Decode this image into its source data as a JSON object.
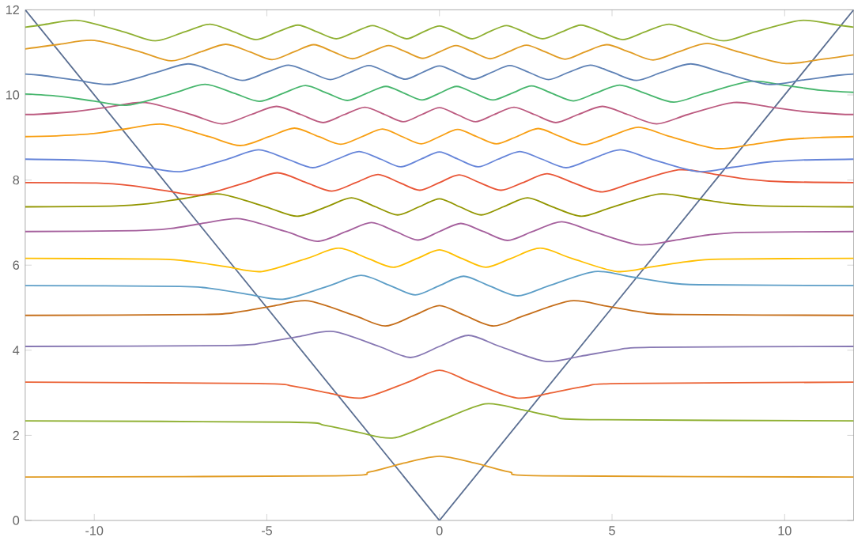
{
  "chart_data": {
    "type": "line",
    "xlim": [
      -12,
      12
    ],
    "ylim": [
      0,
      12
    ],
    "xticks": [
      -10,
      -5,
      0,
      5,
      10
    ],
    "yticks": [
      0,
      2,
      4,
      6,
      8,
      10,
      12
    ],
    "grid": false,
    "series": [
      {
        "color": "#5b6f92",
        "x": [
          -12,
          0,
          12
        ],
        "values": [
          12,
          0,
          12
        ]
      },
      {
        "color": "#E19C24",
        "x": [
          -12,
          -3.02,
          -2.02,
          -1.02,
          0,
          1.02,
          2.02,
          3.02,
          12
        ],
        "values": [
          1.02,
          1.05,
          1.14,
          1.35,
          1.51,
          1.35,
          1.14,
          1.05,
          1.02
        ]
      },
      {
        "color": "#8FB032",
        "x": [
          -12,
          -4.34,
          -3.34,
          -2.34,
          -1.32,
          0,
          1.32,
          2.34,
          3.34,
          4.34,
          12
        ],
        "values": [
          2.34,
          2.31,
          2.24,
          2.07,
          1.94,
          2.34,
          2.74,
          2.61,
          2.44,
          2.37,
          2.34
        ]
      },
      {
        "color": "#EB6235",
        "x": [
          -12,
          -5.25,
          -4.25,
          -3.25,
          -2.23,
          -0.91,
          0,
          0.91,
          2.23,
          3.25,
          4.25,
          5.25,
          12
        ],
        "values": [
          3.25,
          3.22,
          3.16,
          3.0,
          2.88,
          3.25,
          3.53,
          3.25,
          2.88,
          3.0,
          3.16,
          3.22,
          3.25
        ]
      },
      {
        "color": "#8778B3",
        "x": [
          -12,
          -6.09,
          -5.09,
          -4.09,
          -3.07,
          -1.75,
          -0.84,
          0,
          0.84,
          1.75,
          3.07,
          4.09,
          5.09,
          6.09,
          12
        ],
        "values": [
          4.09,
          4.11,
          4.18,
          4.32,
          4.44,
          4.09,
          3.83,
          4.09,
          4.35,
          4.09,
          3.74,
          3.86,
          4.0,
          4.07,
          4.09
        ]
      },
      {
        "color": "#C56E1A",
        "x": [
          -12,
          -6.82,
          -5.82,
          -4.82,
          -3.8,
          -2.48,
          -1.57,
          -0.73,
          0,
          0.73,
          1.57,
          2.48,
          3.8,
          4.82,
          5.82,
          6.82,
          12
        ],
        "values": [
          4.82,
          4.84,
          4.9,
          5.04,
          5.16,
          4.82,
          4.57,
          4.82,
          5.05,
          4.82,
          4.57,
          4.82,
          5.16,
          5.04,
          4.9,
          4.84,
          4.82
        ]
      },
      {
        "color": "#5D9EC7",
        "x": [
          -12,
          -7.52,
          -6.52,
          -5.52,
          -4.5,
          -3.18,
          -2.27,
          -1.43,
          -0.7,
          0,
          0.7,
          1.43,
          2.27,
          3.18,
          4.5,
          5.52,
          6.52,
          7.52,
          12
        ],
        "values": [
          5.52,
          5.5,
          5.44,
          5.31,
          5.2,
          5.52,
          5.76,
          5.52,
          5.3,
          5.52,
          5.74,
          5.52,
          5.28,
          5.52,
          5.85,
          5.73,
          5.6,
          5.54,
          5.52
        ]
      },
      {
        "color": "#FFBF00",
        "x": [
          -12,
          -8.16,
          -7.16,
          -6.16,
          -5.14,
          -3.83,
          -2.92,
          -2.08,
          -1.34,
          -0.64,
          0,
          0.64,
          1.34,
          2.08,
          2.92,
          3.83,
          5.14,
          6.16,
          7.16,
          8.16,
          12
        ],
        "values": [
          6.16,
          6.14,
          6.08,
          5.96,
          5.85,
          6.16,
          6.4,
          6.16,
          5.95,
          6.16,
          6.36,
          6.16,
          5.95,
          6.16,
          6.4,
          6.16,
          5.85,
          5.96,
          6.08,
          6.14,
          6.16
        ]
      },
      {
        "color": "#A5609D",
        "x": [
          -12,
          -8.79,
          -7.79,
          -6.79,
          -5.77,
          -4.45,
          -3.54,
          -2.7,
          -1.97,
          -1.27,
          -0.62,
          0,
          0.62,
          1.27,
          1.97,
          2.7,
          3.54,
          4.45,
          5.77,
          6.79,
          7.79,
          8.79,
          12
        ],
        "values": [
          6.79,
          6.81,
          6.86,
          6.99,
          7.09,
          6.79,
          6.56,
          6.79,
          7.0,
          6.79,
          6.59,
          6.79,
          6.98,
          6.79,
          6.58,
          6.79,
          7.02,
          6.79,
          6.48,
          6.58,
          6.71,
          6.77,
          6.79
        ]
      },
      {
        "color": "#929600",
        "x": [
          -12,
          -9.37,
          -8.37,
          -7.37,
          -6.35,
          -5.03,
          -4.12,
          -3.28,
          -2.55,
          -1.85,
          -1.21,
          -0.59,
          0,
          0.59,
          1.21,
          1.85,
          2.55,
          3.28,
          4.12,
          5.03,
          6.35,
          7.37,
          8.37,
          9.37,
          12
        ],
        "values": [
          7.37,
          7.39,
          7.45,
          7.57,
          7.67,
          7.37,
          7.15,
          7.37,
          7.58,
          7.37,
          7.18,
          7.37,
          7.56,
          7.37,
          7.18,
          7.37,
          7.58,
          7.37,
          7.15,
          7.37,
          7.67,
          7.57,
          7.45,
          7.39,
          7.37
        ]
      },
      {
        "color": "#E95536",
        "x": [
          -12,
          -9.94,
          -8.94,
          -7.94,
          -6.93,
          -5.61,
          -4.7,
          -3.86,
          -3.12,
          -2.42,
          -1.78,
          -1.16,
          -0.57,
          0,
          0.57,
          1.16,
          1.78,
          2.42,
          3.12,
          3.86,
          4.7,
          5.61,
          6.93,
          7.94,
          8.94,
          9.94,
          12
        ],
        "values": [
          7.94,
          7.93,
          7.87,
          7.75,
          7.65,
          7.94,
          8.17,
          7.94,
          7.74,
          7.94,
          8.13,
          7.94,
          7.76,
          7.94,
          8.12,
          7.94,
          7.76,
          7.94,
          8.15,
          7.94,
          7.72,
          7.94,
          8.24,
          8.14,
          8.02,
          7.96,
          7.94
        ]
      },
      {
        "color": "#6685D9",
        "x": [
          -12,
          -10.49,
          -9.49,
          -8.49,
          -7.47,
          -6.15,
          -5.24,
          -4.4,
          -3.67,
          -2.97,
          -2.33,
          -1.7,
          -1.12,
          -0.54,
          0,
          0.54,
          1.12,
          1.7,
          2.33,
          2.97,
          3.67,
          4.4,
          5.24,
          6.15,
          7.47,
          8.49,
          9.49,
          10.49,
          12
        ],
        "values": [
          8.49,
          8.47,
          8.42,
          8.3,
          8.2,
          8.49,
          8.71,
          8.49,
          8.29,
          8.49,
          8.67,
          8.49,
          8.31,
          8.49,
          8.66,
          8.49,
          8.31,
          8.49,
          8.67,
          8.49,
          8.29,
          8.49,
          8.71,
          8.49,
          8.2,
          8.3,
          8.42,
          8.47,
          8.49
        ]
      },
      {
        "color": "#F89F13",
        "x": [
          -12,
          -11.02,
          -10.02,
          -9.02,
          -8.0,
          -6.68,
          -5.77,
          -4.93,
          -4.2,
          -3.5,
          -2.86,
          -2.24,
          -1.65,
          -1.08,
          -0.53,
          0,
          0.53,
          1.08,
          1.65,
          2.24,
          2.86,
          3.5,
          4.2,
          4.93,
          5.77,
          6.68,
          8.0,
          9.02,
          10.02,
          11.02,
          12
        ],
        "values": [
          9.02,
          9.04,
          9.09,
          9.21,
          9.31,
          9.02,
          8.81,
          9.02,
          9.22,
          9.02,
          8.84,
          9.02,
          9.2,
          9.02,
          8.85,
          9.02,
          9.19,
          9.02,
          8.85,
          9.02,
          9.21,
          9.02,
          8.83,
          9.02,
          9.24,
          9.02,
          8.74,
          8.83,
          8.95,
          9.0,
          9.02
        ]
      },
      {
        "color": "#BC5B80",
        "x": [
          -12,
          -11.54,
          -10.54,
          -9.54,
          -8.52,
          -7.2,
          -6.29,
          -5.45,
          -4.72,
          -4.02,
          -3.37,
          -2.75,
          -2.16,
          -1.59,
          -1.05,
          -0.51,
          0,
          0.51,
          1.05,
          1.59,
          2.16,
          2.75,
          3.37,
          4.02,
          4.72,
          5.45,
          6.29,
          7.2,
          8.52,
          9.54,
          10.54,
          11.54,
          12
        ],
        "values": [
          9.54,
          9.55,
          9.61,
          9.72,
          9.82,
          9.54,
          9.32,
          9.54,
          9.73,
          9.54,
          9.35,
          9.54,
          9.71,
          9.54,
          9.37,
          9.54,
          9.7,
          9.54,
          9.37,
          9.54,
          9.71,
          9.54,
          9.35,
          9.54,
          9.73,
          9.54,
          9.32,
          9.54,
          9.82,
          9.72,
          9.61,
          9.55,
          9.54
        ]
      },
      {
        "color": "#47B66D",
        "x": [
          -12,
          -11.04,
          -10.04,
          -9.02,
          -7.7,
          -6.79,
          -5.95,
          -5.22,
          -4.52,
          -3.88,
          -3.25,
          -2.67,
          -2.1,
          -1.55,
          -1.02,
          -0.5,
          0,
          0.5,
          1.02,
          1.55,
          2.1,
          2.67,
          3.25,
          3.88,
          4.52,
          5.22,
          5.95,
          6.79,
          7.7,
          9.02,
          10.04,
          11.04,
          12
        ],
        "values": [
          10.02,
          9.97,
          9.86,
          9.76,
          10.04,
          10.25,
          10.04,
          9.85,
          10.04,
          10.22,
          10.04,
          9.87,
          10.04,
          10.2,
          10.04,
          9.88,
          10.04,
          10.2,
          10.04,
          9.88,
          10.04,
          10.21,
          10.04,
          9.86,
          10.04,
          10.23,
          10.04,
          9.83,
          10.04,
          10.32,
          10.22,
          10.11,
          10.06
        ]
      },
      {
        "color": "#5E81B5",
        "x": [
          -12,
          -11.53,
          -10.53,
          -9.51,
          -8.19,
          -7.28,
          -6.44,
          -5.71,
          -5.01,
          -4.37,
          -3.74,
          -3.16,
          -2.59,
          -2.04,
          -1.51,
          -0.99,
          -0.49,
          0,
          0.49,
          0.99,
          1.51,
          2.04,
          2.59,
          3.16,
          3.74,
          4.37,
          5.01,
          5.71,
          6.44,
          7.28,
          8.19,
          9.51,
          10.53,
          11.53,
          12
        ],
        "values": [
          10.49,
          10.46,
          10.35,
          10.25,
          10.53,
          10.73,
          10.53,
          10.34,
          10.53,
          10.7,
          10.53,
          10.36,
          10.53,
          10.69,
          10.53,
          10.37,
          10.53,
          10.68,
          10.53,
          10.37,
          10.53,
          10.69,
          10.53,
          10.36,
          10.53,
          10.7,
          10.53,
          10.34,
          10.53,
          10.73,
          10.53,
          10.25,
          10.35,
          10.46,
          10.49
        ]
      },
      {
        "color": "#E19C24",
        "x": [
          -12,
          -11.01,
          -9.99,
          -8.67,
          -7.76,
          -6.92,
          -6.19,
          -5.49,
          -4.85,
          -4.22,
          -3.64,
          -3.07,
          -2.52,
          -1.99,
          -1.47,
          -0.97,
          -0.48,
          0,
          0.48,
          0.97,
          1.47,
          1.99,
          2.52,
          3.07,
          3.64,
          4.22,
          4.85,
          5.49,
          6.19,
          6.92,
          7.76,
          8.67,
          9.99,
          11.01,
          12
        ],
        "values": [
          11.08,
          11.19,
          11.28,
          11.01,
          10.8,
          11.01,
          11.19,
          11.01,
          10.83,
          11.01,
          11.18,
          11.01,
          10.85,
          11.01,
          11.16,
          11.01,
          10.86,
          11.01,
          11.16,
          11.01,
          10.85,
          11.01,
          11.17,
          11.01,
          10.84,
          11.01,
          11.18,
          11.01,
          10.82,
          11.01,
          11.21,
          11.01,
          10.74,
          10.83,
          10.94
        ]
      },
      {
        "color": "#8FB032",
        "x": [
          -12,
          -11.48,
          -10.46,
          -9.14,
          -8.23,
          -7.39,
          -6.65,
          -5.95,
          -5.31,
          -4.69,
          -4.1,
          -3.54,
          -2.99,
          -2.45,
          -1.94,
          -1.43,
          -0.95,
          -0.47,
          0,
          0.47,
          0.95,
          1.43,
          1.94,
          2.45,
          2.99,
          3.54,
          4.1,
          4.69,
          5.31,
          5.95,
          6.65,
          7.39,
          8.23,
          9.14,
          10.46,
          11.48,
          12
        ],
        "values": [
          11.59,
          11.65,
          11.75,
          11.48,
          11.27,
          11.48,
          11.66,
          11.48,
          11.3,
          11.48,
          11.64,
          11.48,
          11.32,
          11.48,
          11.63,
          11.48,
          11.32,
          11.48,
          11.62,
          11.48,
          11.32,
          11.48,
          11.63,
          11.48,
          11.32,
          11.48,
          11.64,
          11.48,
          11.3,
          11.48,
          11.66,
          11.48,
          11.27,
          11.48,
          11.75,
          11.65,
          11.59
        ]
      }
    ]
  }
}
